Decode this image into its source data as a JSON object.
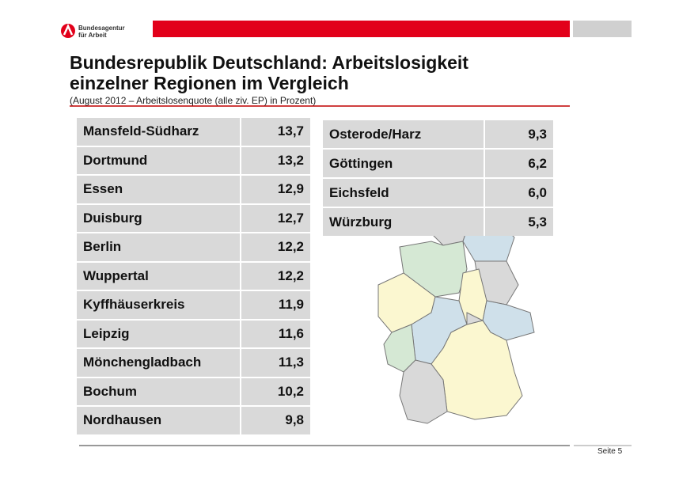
{
  "header": {
    "logo": [
      "Bundesagentur",
      "für Arbeit"
    ]
  },
  "title": [
    "Bundesrepublik Deutschland: Arbeitslosigkeit",
    "einzelner Regionen im Vergleich"
  ],
  "subtitle": "(August 2012 – Arbeitslosenquote (alle ziv. EP) in Prozent)",
  "tables": [
    {
      "rows": [
        [
          "Mansfeld-Südharz",
          "13,7"
        ],
        [
          "Dortmund",
          "13,2"
        ],
        [
          "Essen",
          "12,9"
        ],
        [
          "Duisburg",
          "12,7"
        ],
        [
          "Berlin",
          "12,2"
        ],
        [
          "Wuppertal",
          "12,2"
        ],
        [
          "Kyffhäuserkreis",
          "11,9"
        ],
        [
          "Leipzig",
          "11,6"
        ],
        [
          "Mönchengladbach",
          "11,3"
        ],
        [
          "Bochum",
          "10,2"
        ],
        [
          "Nordhausen",
          "9,8"
        ]
      ]
    },
    {
      "rows": [
        [
          "Osterode/Harz",
          "9,3"
        ],
        [
          "Göttingen",
          "6,2"
        ],
        [
          "Eichsfeld",
          "6,0"
        ],
        [
          "Würzburg",
          "5,3"
        ]
      ]
    }
  ],
  "footer": {
    "page": "Seite 5"
  }
}
